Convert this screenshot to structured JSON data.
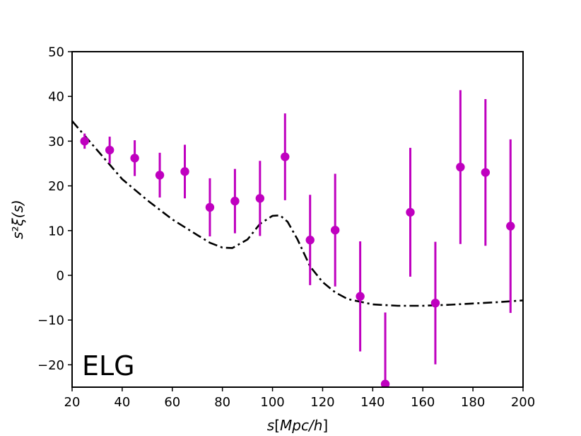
{
  "chart_data": {
    "type": "scatter",
    "xlabel": "s[Mpc/h]",
    "ylabel": "s²ξ(s)",
    "annotation": "ELG",
    "xlim": [
      20,
      200
    ],
    "ylim": [
      -25,
      50
    ],
    "xticks": [
      20,
      40,
      60,
      80,
      100,
      120,
      140,
      160,
      180,
      200
    ],
    "yticks": [
      -20,
      -10,
      0,
      10,
      20,
      30,
      40,
      50
    ],
    "ytick_labels": [
      "−20",
      "−10",
      "0",
      "10",
      "20",
      "30",
      "40",
      "50"
    ],
    "grid": false,
    "colors": {
      "points": "#bf00bf",
      "model": "#000000"
    },
    "series": [
      {
        "kind": "errorbar",
        "x": [
          25,
          35,
          45,
          55,
          65,
          75,
          85,
          95,
          105,
          115,
          125,
          135,
          145,
          155,
          165,
          175,
          185,
          195
        ],
        "y": [
          30.0,
          28.0,
          26.2,
          22.4,
          23.2,
          15.2,
          16.6,
          17.2,
          26.5,
          7.9,
          10.1,
          -4.7,
          -24.3,
          14.1,
          -6.2,
          24.2,
          23.0,
          11.0
        ],
        "yerr": [
          1.7,
          3.0,
          4.0,
          5.0,
          6.0,
          6.5,
          7.2,
          8.4,
          9.7,
          10.1,
          12.6,
          12.3,
          16.0,
          14.4,
          13.7,
          17.2,
          16.4,
          19.4
        ]
      },
      {
        "kind": "line",
        "linestyle": "dashdot",
        "x": [
          20,
          30,
          40,
          50,
          60,
          70,
          75,
          80,
          84,
          90,
          95,
          100,
          103,
          106,
          110,
          115,
          120,
          125,
          130,
          140,
          150,
          160,
          170,
          180,
          190,
          200
        ],
        "y": [
          34.5,
          28.0,
          21.5,
          16.8,
          12.5,
          9.0,
          7.3,
          6.2,
          6.1,
          8.0,
          11.5,
          13.3,
          13.4,
          12.0,
          8.0,
          2.0,
          -1.5,
          -3.8,
          -5.3,
          -6.5,
          -6.8,
          -6.8,
          -6.6,
          -6.3,
          -6.0,
          -5.6
        ]
      }
    ]
  }
}
